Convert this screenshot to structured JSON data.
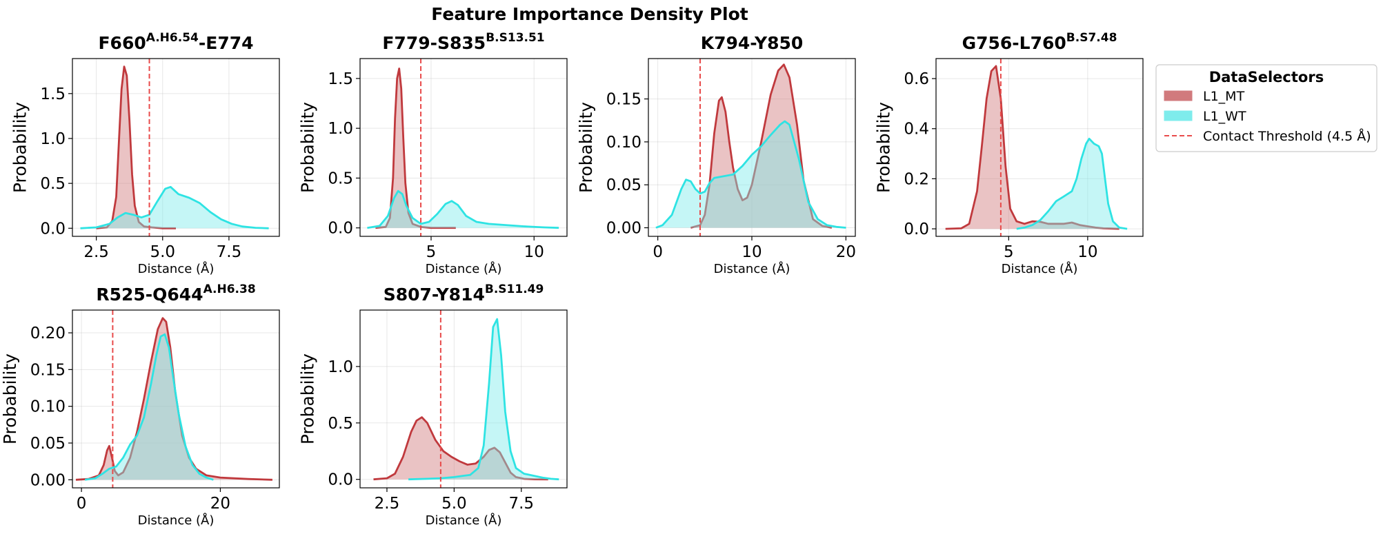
{
  "figure": {
    "title": "Feature Importance Density Plot"
  },
  "legend": {
    "title": "DataSelectors",
    "placement": "right",
    "entries": [
      {
        "label": "L1_MT",
        "kind": "patch",
        "color": "#c44e52",
        "fill": "#d17a7d"
      },
      {
        "label": "L1_WT",
        "kind": "patch",
        "color": "#2ee3e3",
        "fill": "#7eecec"
      },
      {
        "label": "Contact Threshold (4.5 Å)",
        "kind": "dashed",
        "color": "#e84a4a"
      }
    ]
  },
  "chart_data": [
    {
      "type": "area",
      "title": "F660",
      "title_sup": "A.H6.54",
      "title_suffix": "-E774",
      "xlabel": "Distance (Å)",
      "ylabel": "Probability",
      "xlim": [
        1.6,
        9.4
      ],
      "ylim": [
        -0.09,
        1.89
      ],
      "xticks": [
        2.5,
        5.0,
        7.5
      ],
      "yticks": [
        0.0,
        0.5,
        1.0,
        1.5
      ],
      "threshold": 4.5,
      "grid": true,
      "series": [
        {
          "name": "L1_MT",
          "x": [
            2.5,
            2.9,
            3.1,
            3.25,
            3.35,
            3.45,
            3.55,
            3.65,
            3.75,
            3.85,
            3.95,
            4.1,
            4.3,
            4.6,
            5.0,
            5.5
          ],
          "y": [
            0.0,
            0.01,
            0.08,
            0.35,
            0.95,
            1.55,
            1.8,
            1.7,
            1.2,
            0.6,
            0.25,
            0.07,
            0.02,
            0.01,
            0.0,
            0.0
          ]
        },
        {
          "name": "L1_WT",
          "x": [
            1.9,
            2.5,
            3.0,
            3.3,
            3.6,
            3.9,
            4.2,
            4.5,
            4.8,
            5.1,
            5.3,
            5.6,
            6.0,
            6.4,
            6.8,
            7.2,
            7.6,
            8.0,
            8.5,
            9.0
          ],
          "y": [
            0.0,
            0.01,
            0.05,
            0.12,
            0.17,
            0.15,
            0.12,
            0.15,
            0.3,
            0.44,
            0.46,
            0.38,
            0.34,
            0.28,
            0.18,
            0.1,
            0.05,
            0.02,
            0.005,
            0.0
          ]
        }
      ]
    },
    {
      "type": "area",
      "title": "F779-S835",
      "title_sup": "B.S13.51",
      "title_suffix": "",
      "xlabel": "Distance (Å)",
      "ylabel": "Probability",
      "xlim": [
        1.55,
        11.6
      ],
      "ylim": [
        -0.085,
        1.7
      ],
      "xticks": [
        5,
        10
      ],
      "yticks": [
        0.0,
        0.5,
        1.0,
        1.5
      ],
      "threshold": 4.5,
      "grid": true,
      "series": [
        {
          "name": "L1_MT",
          "x": [
            2.3,
            2.8,
            3.0,
            3.15,
            3.25,
            3.35,
            3.45,
            3.55,
            3.65,
            3.75,
            3.9,
            4.1,
            4.5,
            5.0,
            6.2
          ],
          "y": [
            0.0,
            0.01,
            0.1,
            0.5,
            1.1,
            1.5,
            1.6,
            1.4,
            0.9,
            0.45,
            0.15,
            0.04,
            0.01,
            0.0,
            0.0
          ]
        },
        {
          "name": "L1_WT",
          "x": [
            1.9,
            2.5,
            2.9,
            3.2,
            3.4,
            3.6,
            3.8,
            4.1,
            4.5,
            4.9,
            5.3,
            5.7,
            6.0,
            6.3,
            6.7,
            7.2,
            7.8,
            8.5,
            9.5,
            10.5,
            11.2
          ],
          "y": [
            0.0,
            0.02,
            0.12,
            0.3,
            0.37,
            0.34,
            0.22,
            0.1,
            0.04,
            0.06,
            0.14,
            0.24,
            0.27,
            0.23,
            0.12,
            0.06,
            0.04,
            0.03,
            0.015,
            0.005,
            0.0
          ]
        }
      ]
    },
    {
      "type": "area",
      "title": "K794-Y850",
      "title_sup": "",
      "title_suffix": "",
      "xlabel": "Distance (Å)",
      "ylabel": "Probability",
      "xlim": [
        -1.0,
        21.0
      ],
      "ylim": [
        -0.01,
        0.197
      ],
      "xticks": [
        0,
        10,
        20
      ],
      "yticks": [
        0.0,
        0.05,
        0.1,
        0.15
      ],
      "threshold": 4.5,
      "grid": true,
      "series": [
        {
          "name": "L1_MT",
          "x": [
            3.5,
            4.5,
            5.0,
            5.5,
            6.0,
            6.5,
            6.8,
            7.2,
            7.6,
            8.0,
            8.5,
            9.0,
            9.5,
            10.0,
            11.0,
            12.0,
            12.8,
            13.4,
            14.0,
            14.8,
            15.5,
            16.5,
            17.5,
            18.5
          ],
          "y": [
            0.0,
            0.003,
            0.015,
            0.05,
            0.11,
            0.148,
            0.152,
            0.135,
            0.1,
            0.07,
            0.045,
            0.032,
            0.035,
            0.05,
            0.1,
            0.155,
            0.183,
            0.19,
            0.175,
            0.12,
            0.055,
            0.01,
            0.002,
            0.0
          ]
        },
        {
          "name": "L1_WT",
          "x": [
            -0.2,
            0.5,
            1.5,
            2.5,
            3.0,
            3.5,
            4.0,
            4.5,
            5.0,
            5.5,
            6.0,
            7.0,
            8.0,
            9.0,
            10.0,
            11.0,
            12.0,
            13.0,
            13.5,
            14.0,
            15.0,
            16.0,
            17.0,
            18.0,
            19.0,
            20.0
          ],
          "y": [
            0.0,
            0.003,
            0.015,
            0.045,
            0.056,
            0.054,
            0.045,
            0.04,
            0.042,
            0.052,
            0.058,
            0.06,
            0.062,
            0.072,
            0.085,
            0.095,
            0.108,
            0.12,
            0.124,
            0.12,
            0.08,
            0.03,
            0.01,
            0.003,
            0.001,
            0.0
          ]
        }
      ]
    },
    {
      "type": "area",
      "title": "G756-L760",
      "title_sup": "B.S7.48",
      "title_suffix": "",
      "xlabel": "Distance (Å)",
      "ylabel": "Probability",
      "xlim": [
        0.4,
        13.5
      ],
      "ylim": [
        -0.03,
        0.68
      ],
      "xticks": [
        5,
        10
      ],
      "yticks": [
        0.0,
        0.2,
        0.4,
        0.6
      ],
      "threshold": 4.5,
      "grid": true,
      "series": [
        {
          "name": "L1_MT",
          "x": [
            1.0,
            2.0,
            2.5,
            3.0,
            3.3,
            3.6,
            3.9,
            4.2,
            4.5,
            4.8,
            5.1,
            5.5,
            6.0,
            6.5,
            7.0,
            7.5,
            8.0,
            8.5,
            9.0,
            9.5,
            10.0,
            10.5,
            11.0,
            11.5,
            12.0
          ],
          "y": [
            0.0,
            0.002,
            0.02,
            0.15,
            0.33,
            0.52,
            0.63,
            0.65,
            0.52,
            0.25,
            0.08,
            0.03,
            0.02,
            0.03,
            0.028,
            0.02,
            0.02,
            0.02,
            0.025,
            0.015,
            0.01,
            0.005,
            0.002,
            0.001,
            0.0
          ]
        },
        {
          "name": "L1_WT",
          "x": [
            5.5,
            6.0,
            6.5,
            7.0,
            7.5,
            8.0,
            8.5,
            9.0,
            9.3,
            9.6,
            9.9,
            10.1,
            10.4,
            10.7,
            10.9,
            11.1,
            11.3,
            11.6,
            12.0,
            12.5
          ],
          "y": [
            0.0,
            0.005,
            0.015,
            0.035,
            0.07,
            0.11,
            0.13,
            0.15,
            0.2,
            0.28,
            0.34,
            0.36,
            0.34,
            0.33,
            0.3,
            0.2,
            0.1,
            0.03,
            0.005,
            0.0
          ]
        }
      ]
    },
    {
      "type": "area",
      "title": "R525-Q644",
      "title_sup": "A.H6.38",
      "title_suffix": "",
      "xlabel": "Distance (Å)",
      "ylabel": "Probability",
      "xlim": [
        -1.3,
        28.5
      ],
      "ylim": [
        -0.011,
        0.231
      ],
      "xticks": [
        0,
        20
      ],
      "yticks": [
        0.0,
        0.05,
        0.1,
        0.15,
        0.2
      ],
      "threshold": 4.5,
      "grid": true,
      "series": [
        {
          "name": "L1_MT",
          "x": [
            -0.8,
            1.0,
            2.5,
            3.2,
            3.7,
            4.0,
            4.4,
            4.8,
            5.3,
            6.0,
            7.0,
            8.0,
            9.0,
            10.0,
            11.0,
            11.7,
            12.2,
            12.8,
            13.5,
            14.5,
            15.5,
            16.5,
            18.0,
            20.0,
            24.0,
            27.5
          ],
          "y": [
            0.0,
            0.001,
            0.006,
            0.02,
            0.04,
            0.046,
            0.03,
            0.012,
            0.006,
            0.01,
            0.03,
            0.065,
            0.11,
            0.16,
            0.205,
            0.22,
            0.215,
            0.18,
            0.12,
            0.06,
            0.03,
            0.015,
            0.006,
            0.003,
            0.001,
            0.0
          ]
        },
        {
          "name": "L1_WT",
          "x": [
            0.5,
            2.0,
            3.0,
            4.0,
            5.0,
            6.0,
            7.0,
            8.0,
            9.0,
            10.0,
            10.8,
            11.4,
            12.0,
            12.6,
            13.2,
            14.0,
            15.0,
            16.0,
            17.0,
            18.0,
            19.0
          ],
          "y": [
            0.0,
            0.002,
            0.008,
            0.015,
            0.018,
            0.03,
            0.048,
            0.06,
            0.085,
            0.13,
            0.17,
            0.195,
            0.198,
            0.18,
            0.14,
            0.09,
            0.045,
            0.02,
            0.008,
            0.003,
            0.0
          ]
        }
      ]
    },
    {
      "type": "area",
      "title": "S807-Y814",
      "title_sup": "B.S11.49",
      "title_suffix": "",
      "xlabel": "Distance (Å)",
      "ylabel": "Probability",
      "xlim": [
        1.5,
        9.2
      ],
      "ylim": [
        -0.075,
        1.5
      ],
      "xticks": [
        2.5,
        5.0,
        7.5
      ],
      "yticks": [
        0.0,
        0.5,
        1.0
      ],
      "threshold": 4.5,
      "grid": true,
      "series": [
        {
          "name": "L1_MT",
          "x": [
            2.0,
            2.5,
            2.8,
            3.1,
            3.4,
            3.6,
            3.8,
            4.0,
            4.3,
            4.6,
            4.9,
            5.2,
            5.5,
            5.8,
            6.1,
            6.3,
            6.5,
            6.7,
            6.9,
            7.1,
            7.3,
            7.6,
            8.0,
            8.5
          ],
          "y": [
            0.0,
            0.01,
            0.05,
            0.2,
            0.42,
            0.52,
            0.55,
            0.5,
            0.35,
            0.25,
            0.2,
            0.16,
            0.13,
            0.14,
            0.2,
            0.26,
            0.28,
            0.24,
            0.15,
            0.06,
            0.02,
            0.005,
            0.001,
            0.0
          ]
        },
        {
          "name": "L1_WT",
          "x": [
            3.3,
            4.0,
            4.5,
            5.0,
            5.3,
            5.6,
            5.9,
            6.1,
            6.3,
            6.45,
            6.6,
            6.75,
            6.9,
            7.1,
            7.3,
            7.6,
            8.0,
            8.3,
            8.6,
            8.9
          ],
          "y": [
            0.0,
            0.005,
            0.01,
            0.02,
            0.03,
            0.04,
            0.1,
            0.3,
            0.85,
            1.35,
            1.42,
            1.1,
            0.6,
            0.25,
            0.1,
            0.05,
            0.03,
            0.015,
            0.005,
            0.0
          ]
        }
      ]
    }
  ]
}
